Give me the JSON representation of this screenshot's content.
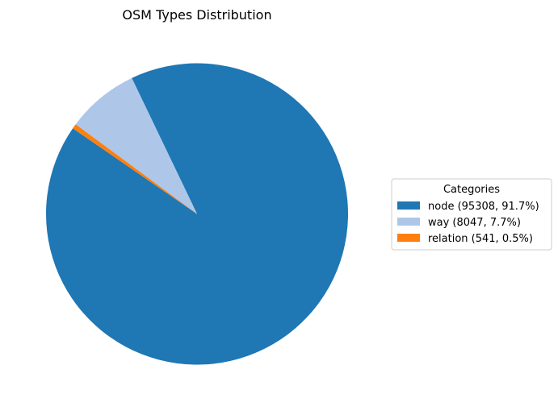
{
  "chart_data": {
    "type": "pie",
    "title": "OSM Types Distribution",
    "categories": [
      "node",
      "way",
      "relation"
    ],
    "values": [
      95308,
      8047,
      541
    ],
    "colors": [
      "#1f77b4",
      "#aec7e8",
      "#ff7f0e"
    ],
    "legend": {
      "title": "Categories",
      "placement": "right",
      "entries": [
        "node (95308, 91.7%)",
        "way (8047, 7.7%)",
        "relation (541, 0.5%)"
      ]
    }
  }
}
